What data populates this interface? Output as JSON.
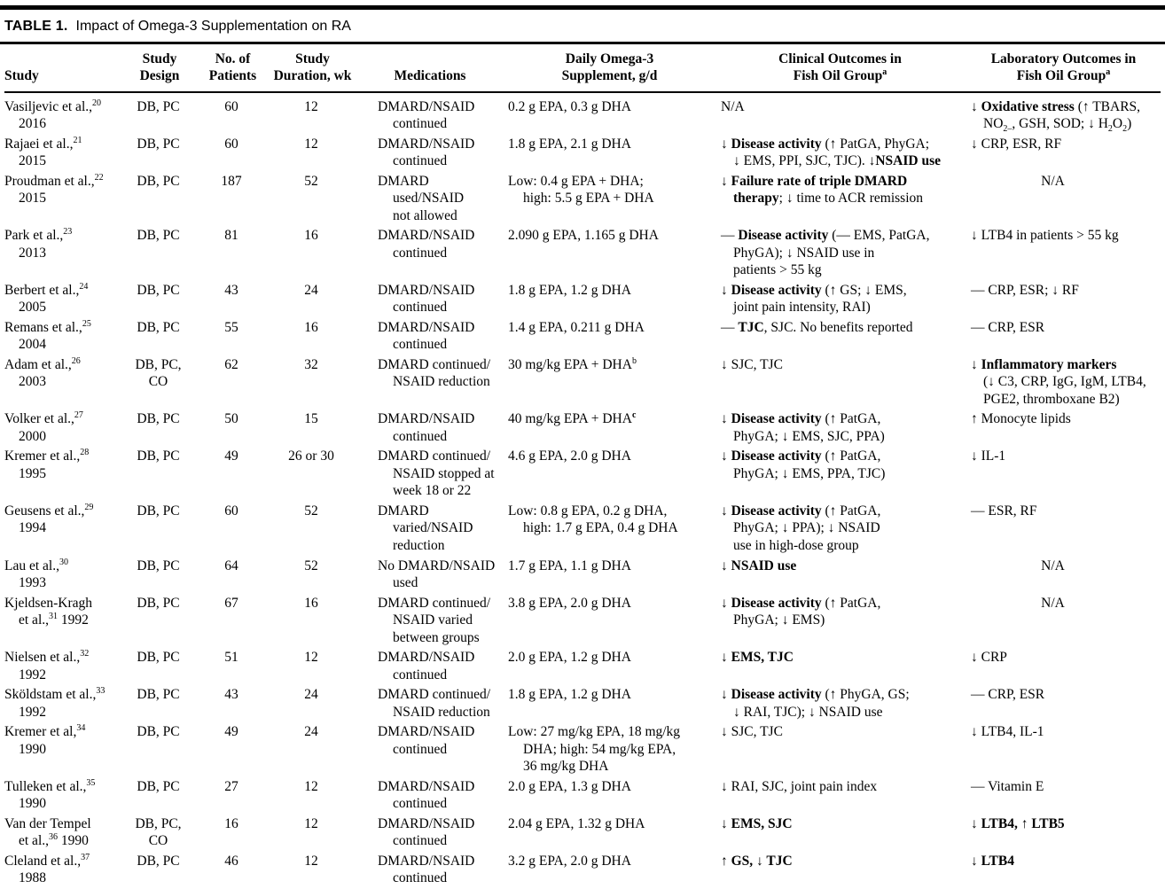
{
  "table": {
    "title_label": "TABLE 1.",
    "title_text": "Impact of Omega-3 Supplementation on RA",
    "columns": [
      {
        "key": "study",
        "label": "Study"
      },
      {
        "key": "design",
        "label": "Study\nDesign"
      },
      {
        "key": "patients",
        "label": "No. of\nPatients"
      },
      {
        "key": "duration",
        "label": "Study\nDuration, wk"
      },
      {
        "key": "medications",
        "label": "Medications"
      },
      {
        "key": "supplement",
        "label": "Daily Omega-3\nSupplement, g/d"
      },
      {
        "key": "clinical",
        "label": "Clinical Outcomes in\nFish Oil Group^a^"
      },
      {
        "key": "laboratory",
        "label": "Laboratory Outcomes in\nFish Oil Group^a^"
      }
    ],
    "rows": [
      {
        "study": "Vasiljevic et al.,^20^\n2016",
        "design": "DB, PC",
        "patients": "60",
        "duration": "12",
        "medications": "DMARD/NSAID\ncontinued",
        "supplement": "0.2 g EPA, 0.3 g DHA",
        "clinical": "N/A",
        "laboratory": "↓ **Oxidative stress** (↑ TBARS,\nNO~2–~, GSH, SOD; ↓ H~2~O~2~)"
      },
      {
        "study": "Rajaei et al.,^21^\n2015",
        "design": "DB, PC",
        "patients": "60",
        "duration": "12",
        "medications": "DMARD/NSAID\ncontinued",
        "supplement": "1.8 g EPA, 2.1 g DHA",
        "clinical": "↓ **Disease activity** (↑ PatGA, PhyGA;\n↓ EMS, PPI, SJC, TJC). ↓**NSAID use**",
        "laboratory": "↓ CRP, ESR, RF"
      },
      {
        "study": "Proudman et al.,^22^\n2015",
        "design": "DB, PC",
        "patients": "187",
        "duration": "52",
        "medications": "DMARD used/NSAID\nnot allowed",
        "supplement": "Low: 0.4 g EPA + DHA;\nhigh: 5.5 g EPA + DHA",
        "clinical": "↓ **Failure rate of triple DMARD\ntherapy**; ↓ time to ACR remission",
        "laboratory": "N/A"
      },
      {
        "study": "Park et al.,^23^\n2013",
        "design": "DB, PC",
        "patients": "81",
        "duration": "16",
        "medications": "DMARD/NSAID\ncontinued",
        "supplement": "2.090 g EPA, 1.165 g DHA",
        "clinical": "— **Disease activity** (— EMS, PatGA,\nPhyGA); ↓ NSAID use in\npatients > 55 kg",
        "laboratory": "↓ LTB4 in patients > 55 kg"
      },
      {
        "study": "Berbert et al.,^24^\n2005",
        "design": "DB, PC",
        "patients": "43",
        "duration": "24",
        "medications": "DMARD/NSAID\ncontinued",
        "supplement": "1.8 g EPA, 1.2 g DHA",
        "clinical": "↓ **Disease activity** (↑ GS; ↓ EMS,\njoint pain intensity, RAI)",
        "laboratory": "— CRP, ESR; ↓ RF"
      },
      {
        "study": "Remans et al.,^25^\n2004",
        "design": "DB, PC",
        "patients": "55",
        "duration": "16",
        "medications": "DMARD/NSAID\ncontinued",
        "supplement": "1.4 g EPA, 0.211 g DHA",
        "clinical": "— **TJC**, SJC. No benefits reported",
        "laboratory": "— CRP, ESR"
      },
      {
        "study": "Adam et al.,^26^\n2003",
        "design": "DB, PC, CO",
        "patients": "62",
        "duration": "32",
        "medications": "DMARD continued/\nNSAID reduction",
        "supplement": "30 mg/kg EPA + DHA^b^",
        "clinical": "↓ SJC, TJC",
        "laboratory": "↓ **Inflammatory markers**\n(↓ C3, CRP, IgG, IgM, LTB4,\nPGE2, thromboxane B2)"
      },
      {
        "study": "Volker et al.,^27^\n2000",
        "design": "DB, PC",
        "patients": "50",
        "duration": "15",
        "medications": "DMARD/NSAID\ncontinued",
        "supplement": "40 mg/kg EPA + DHA^**c**^",
        "clinical": "↓ **Disease activity** (↑ PatGA,\nPhyGA; ↓ EMS, SJC, PPA)",
        "laboratory": "↑ Monocyte lipids"
      },
      {
        "study": "Kremer et al.,^28^\n1995",
        "design": "DB, PC",
        "patients": "49",
        "duration": "26 or 30",
        "medications": "DMARD continued/\nNSAID stopped at\nweek 18 or 22",
        "supplement": "4.6 g EPA, 2.0 g DHA",
        "clinical": "↓ **Disease activity** (↑ PatGA,\nPhyGA; ↓ EMS, PPA, TJC)",
        "laboratory": "↓ IL-1"
      },
      {
        "study": "Geusens et al.,^29^\n1994",
        "design": "DB, PC",
        "patients": "60",
        "duration": "52",
        "medications": "DMARD varied/NSAID\nreduction",
        "supplement": "Low: 0.8 g EPA, 0.2 g DHA,\nhigh: 1.7 g EPA, 0.4 g DHA",
        "clinical": "↓ **Disease activity** (↑ PatGA,\nPhyGA; ↓ PPA); ↓ NSAID\nuse in high-dose group",
        "laboratory": "— ESR, RF"
      },
      {
        "study": "Lau et al.,^30^\n1993",
        "design": "DB, PC",
        "patients": "64",
        "duration": "52",
        "medications": "No DMARD/NSAID\nused",
        "supplement": "1.7 g EPA, 1.1 g DHA",
        "clinical": "↓ **NSAID use**",
        "laboratory": "N/A"
      },
      {
        "study": "Kjeldsen-Kragh\net al.,^31^ 1992",
        "design": "DB, PC",
        "patients": "67",
        "duration": "16",
        "medications": "DMARD continued/\nNSAID varied\nbetween groups",
        "supplement": "3.8 g EPA, 2.0 g DHA",
        "clinical": "↓ **Disease activity** (↑ PatGA,\nPhyGA; ↓ EMS)",
        "laboratory": "N/A"
      },
      {
        "study": "Nielsen et al.,^32^\n1992",
        "design": "DB, PC",
        "patients": "51",
        "duration": "12",
        "medications": "DMARD/NSAID\ncontinued",
        "supplement": "2.0 g EPA, 1.2 g DHA",
        "clinical": "↓ **EMS, TJC**",
        "laboratory": "↓ CRP"
      },
      {
        "study": "Sköldstam et al.,^33^\n1992",
        "design": "DB, PC",
        "patients": "43",
        "duration": "24",
        "medications": "DMARD continued/\nNSAID reduction",
        "supplement": "1.8 g EPA, 1.2 g DHA",
        "clinical": "↓ **Disease activity** (↑ PhyGA, GS;\n↓ RAI, TJC); ↓ NSAID use",
        "laboratory": "— CRP, ESR"
      },
      {
        "study": "Kremer et al,^34^\n1990",
        "design": "DB, PC",
        "patients": "49",
        "duration": "24",
        "medications": "DMARD/NSAID\ncontinued",
        "supplement": "Low: 27 mg/kg EPA, 18 mg/kg\nDHA; high: 54 mg/kg EPA,\n36 mg/kg DHA",
        "clinical": "↓ SJC, TJC",
        "laboratory": "↓ LTB4, IL-1"
      },
      {
        "study": "Tulleken et al.,^35^\n1990",
        "design": "DB, PC",
        "patients": "27",
        "duration": "12",
        "medications": "DMARD/NSAID\ncontinued",
        "supplement": "2.0 g EPA, 1.3 g DHA",
        "clinical": "↓ RAI, SJC, joint pain index",
        "laboratory": "— Vitamin E"
      },
      {
        "study": "Van der Tempel\net al.,^36^ 1990",
        "design": "DB, PC, CO",
        "patients": "16",
        "duration": "12",
        "medications": "DMARD/NSAID\ncontinued",
        "supplement": "2.04 g EPA, 1.32 g DHA",
        "clinical": "↓ **EMS, SJC**",
        "laboratory": "**↓ LTB4, ↑ LTB5**"
      },
      {
        "study": "Cleland et al.,^37^\n1988",
        "design": "DB, PC",
        "patients": "46",
        "duration": "12",
        "medications": "DMARD/NSAID\ncontinued",
        "supplement": "3.2 g EPA, 2.0 g DHA",
        "clinical": "**↑ GS, ↓ TJC**",
        "laboratory": "**↓ LTB4**"
      }
    ]
  }
}
